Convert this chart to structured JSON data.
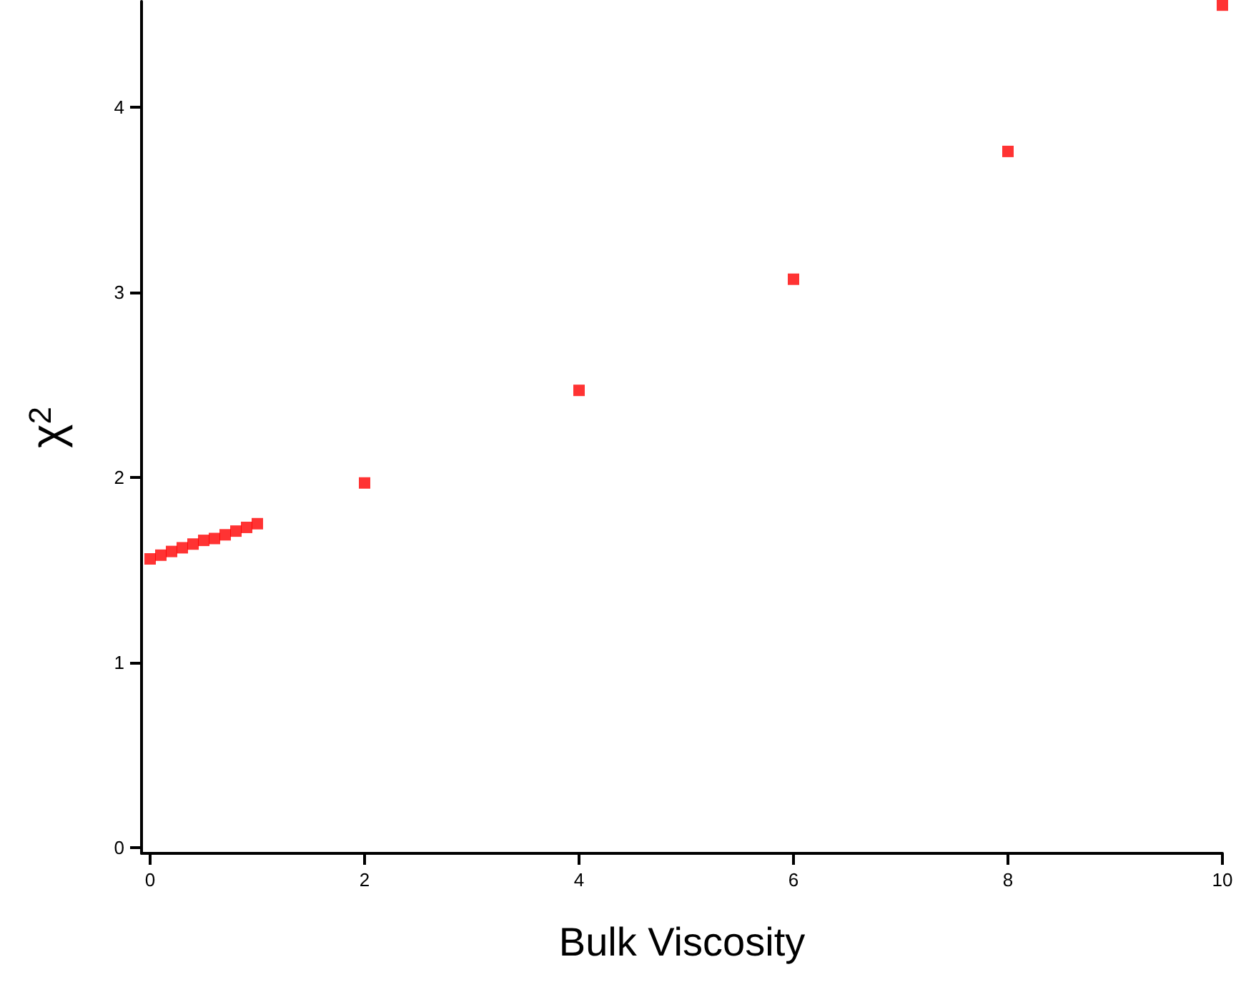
{
  "chart_data": {
    "type": "scatter",
    "xlabel": "Bulk Viscosity",
    "ylabel": "χ$^{2}$",
    "x": [
      0,
      0.1,
      0.2,
      0.3,
      0.4,
      0.5,
      0.6,
      0.7,
      0.8,
      0.9,
      1,
      2,
      4,
      6,
      8,
      10
    ],
    "series": [
      {
        "color": "#ff0000",
        "values": [
          1.56,
          1.58,
          1.6,
          1.62,
          1.64,
          1.66,
          1.67,
          1.69,
          1.71,
          1.73,
          1.75,
          1.97,
          2.47,
          3.07,
          3.76,
          4.55
        ]
      }
    ],
    "marker": "square",
    "xlim": [
      -0.08,
      10
    ],
    "xticks": [
      0,
      2,
      4,
      6,
      8,
      10
    ],
    "ylim": [
      -0.03,
      4.57
    ],
    "yticks": [
      0,
      1,
      2,
      3,
      4
    ],
    "grid": false
  }
}
